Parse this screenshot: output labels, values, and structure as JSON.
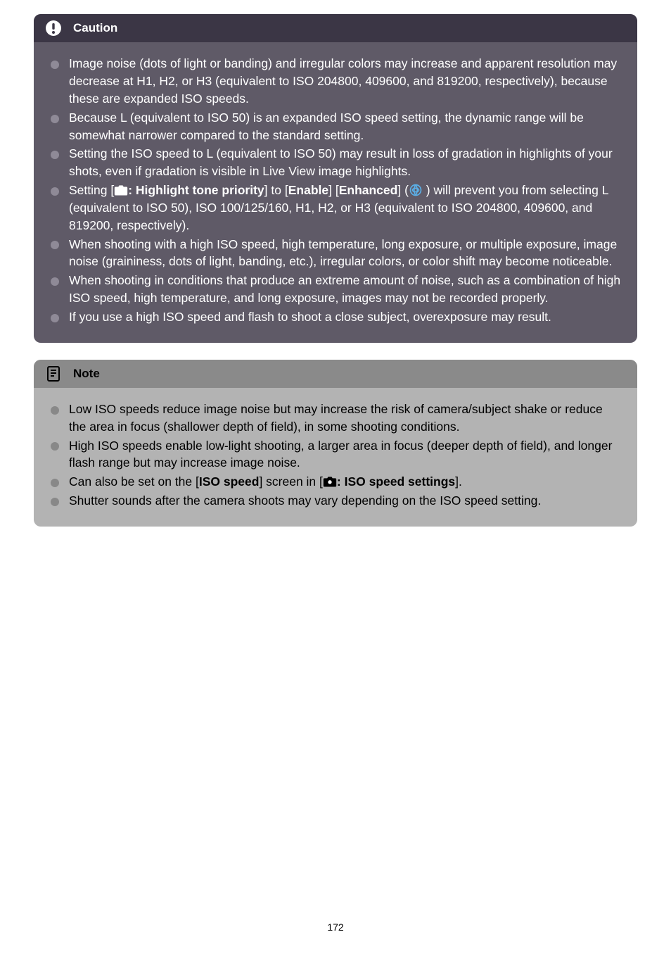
{
  "caution": {
    "title": "Caution",
    "items": [
      {
        "text": "Image noise (dots of light or banding) and irregular colors may increase and apparent resolution may decrease at H1, H2, or H3 (equivalent to ISO 204800, 409600, and 819200, respectively), because these are expanded ISO speeds."
      },
      {
        "text": "Because L (equivalent to ISO 50) is an expanded ISO speed setting, the dynamic range will be somewhat narrower compared to the standard setting."
      },
      {
        "text": "Setting the ISO speed to L (equivalent to ISO 50) may result in loss of gradation in highlights of your shots, even if gradation is visible in Live View image highlights."
      },
      {
        "special": "highlight_tone"
      },
      {
        "text": "When shooting with a high ISO speed, high temperature, long exposure, or multiple exposure, image noise (graininess, dots of light, banding, etc.), irregular colors, or color shift may become noticeable."
      },
      {
        "text": "When shooting in conditions that produce an extreme amount of noise, such as a combination of high ISO speed, high temperature, and long exposure, images may not be recorded properly."
      },
      {
        "text": "If you use a high ISO speed and flash to shoot a close subject, overexposure may result."
      }
    ],
    "special_parts": {
      "prefix": "Setting [",
      "bold1": ": Highlight tone priority",
      "mid1": "] to [",
      "bold2": "Enable",
      "mid2": "] [",
      "bold3": "Enhanced",
      "mid3": "] (",
      "after_link": " ) will prevent you from selecting L (equivalent to ISO 50), ISO 100/125/160, H1, H2, or H3 (equivalent to ISO 204800, 409600, and 819200, respectively)."
    }
  },
  "note": {
    "title": "Note",
    "items": [
      {
        "text": "Low ISO speeds reduce image noise but may increase the risk of camera/subject shake or reduce the area in focus (shallower depth of field), in some shooting conditions."
      },
      {
        "text": "High ISO speeds enable low-light shooting, a larger area in focus (deeper depth of field), and longer flash range but may increase image noise."
      },
      {
        "special": "iso_speed_screen"
      },
      {
        "text": "Shutter sounds after the camera shoots may vary depending on the ISO speed setting."
      }
    ],
    "iso_parts": {
      "prefix": "Can also be set on the [",
      "bold1": "ISO speed",
      "mid1": "] screen in [",
      "bold2": ": ISO speed settings",
      "suffix": "]."
    }
  },
  "page_number": "172"
}
